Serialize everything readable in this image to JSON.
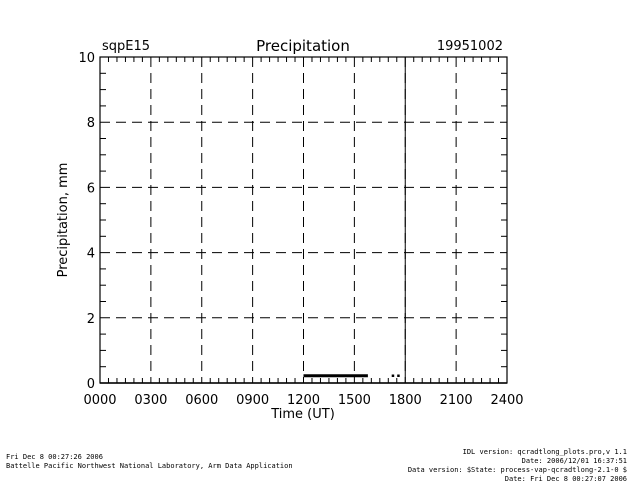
{
  "chart_data": {
    "type": "line",
    "title": "Precipitation",
    "site_label": "sqpE15",
    "date_label": "19951002",
    "xlabel": "Time (UT)",
    "ylabel": "Precipitation, mm",
    "xlim": [
      0,
      2400
    ],
    "ylim": [
      0,
      10
    ],
    "x_ticks": [
      "0000",
      "0300",
      "0600",
      "0900",
      "1200",
      "1500",
      "1800",
      "2100",
      "2400"
    ],
    "y_ticks": [
      "0",
      "2",
      "4",
      "6",
      "8",
      "10"
    ],
    "grid": true,
    "reference_line_x": 1800,
    "series": [
      {
        "style": "solid",
        "segments": [
          {
            "x": [
              0,
              2400
            ],
            "y": [
              0,
              0
            ]
          }
        ]
      },
      {
        "style": "thick",
        "segments": [
          {
            "x": [
              1200,
              1580
            ],
            "y": [
              0.22,
              0.22
            ]
          }
        ]
      },
      {
        "style": "dotted",
        "segments": [
          {
            "x": [
              1720,
              1770
            ],
            "y": [
              0.22,
              0.22
            ]
          }
        ]
      }
    ]
  },
  "footer": {
    "left_lines": [
      "Fri Dec  8 00:27:26 2006",
      "Battelle Pacific Northwest National Laboratory, Arm Data Application"
    ],
    "right_lines": [
      "IDL version: qcradtlong_plots.pro,v 1.1",
      "Date: 2006/12/01 16:37:51",
      "Data version: $State: process-vap-qcradtlong-2.1-0 $",
      "Date: Fri Dec  8 00:27:07 2006"
    ]
  }
}
